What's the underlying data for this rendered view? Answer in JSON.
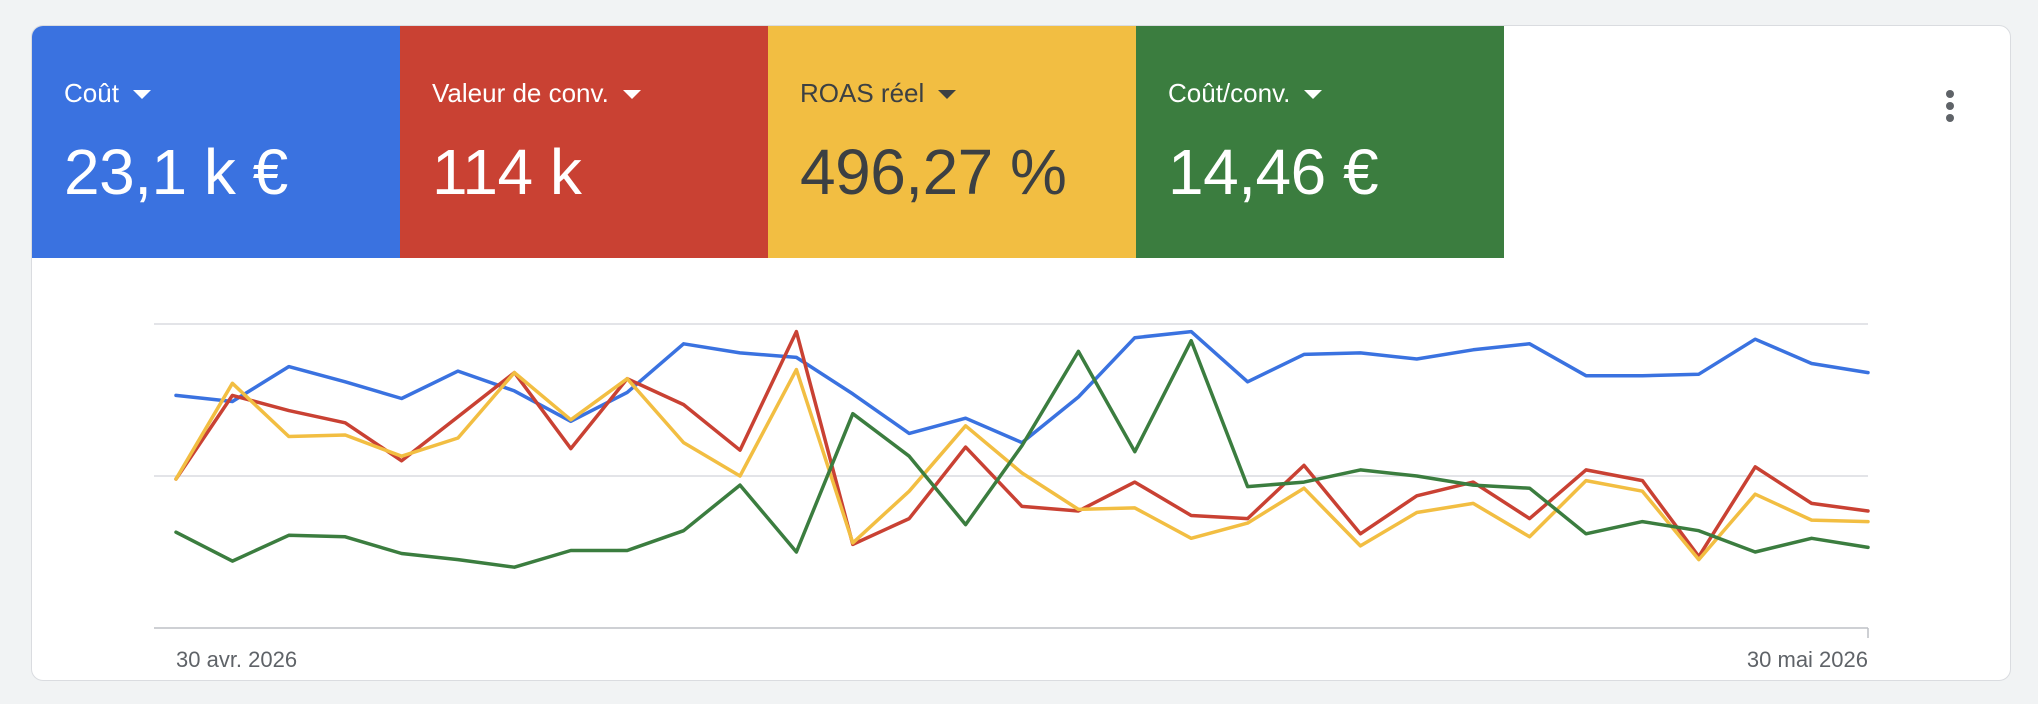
{
  "metrics": [
    {
      "label": "Coût",
      "value": "23,1 k €",
      "color": "#3a72e0",
      "text_color": "#ffffff",
      "icon": "caret-down-icon"
    },
    {
      "label": "Valeur de conv.",
      "value": "114 k",
      "color": "#c94133",
      "text_color": "#ffffff",
      "icon": "caret-down-icon"
    },
    {
      "label": "ROAS réel",
      "value": "496,27 %",
      "color": "#f2be42",
      "text_color": "#3c4043",
      "icon": "caret-down-icon"
    },
    {
      "label": "Coût/conv.",
      "value": "14,46 €",
      "color": "#3b7d3f",
      "text_color": "#ffffff",
      "icon": "caret-down-icon"
    }
  ],
  "menu": {
    "icon": "more-vert-icon"
  },
  "chart_data": {
    "type": "line",
    "x_labels": [
      "30 avr. 2026",
      "30 mai 2026"
    ],
    "x": [
      "2026-04-30",
      "2026-05-01",
      "2026-05-02",
      "2026-05-03",
      "2026-05-04",
      "2026-05-05",
      "2026-05-06",
      "2026-05-07",
      "2026-05-08",
      "2026-05-09",
      "2026-05-10",
      "2026-05-11",
      "2026-05-12",
      "2026-05-13",
      "2026-05-14",
      "2026-05-15",
      "2026-05-16",
      "2026-05-17",
      "2026-05-18",
      "2026-05-19",
      "2026-05-20",
      "2026-05-21",
      "2026-05-22",
      "2026-05-23",
      "2026-05-24",
      "2026-05-25",
      "2026-05-26",
      "2026-05-27",
      "2026-05-28",
      "2026-05-29",
      "2026-05-30"
    ],
    "ylim": [
      0,
      2
    ],
    "grid": true,
    "y_axis_labels": false,
    "series": [
      {
        "color": "#3a72e0",
        "values": [
          1.53,
          1.49,
          1.72,
          1.62,
          1.51,
          1.69,
          1.56,
          1.36,
          1.55,
          1.87,
          1.81,
          1.78,
          1.54,
          1.28,
          1.38,
          1.22,
          1.52,
          1.91,
          1.95,
          1.62,
          1.8,
          1.81,
          1.77,
          1.83,
          1.87,
          1.66,
          1.66,
          1.67,
          1.9,
          1.74,
          1.68
        ]
      },
      {
        "color": "#c94133",
        "values": [
          0.98,
          1.53,
          1.43,
          1.35,
          1.1,
          1.39,
          1.68,
          1.18,
          1.64,
          1.47,
          1.17,
          1.95,
          0.55,
          0.72,
          1.19,
          0.8,
          0.77,
          0.96,
          0.74,
          0.72,
          1.07,
          0.62,
          0.87,
          0.96,
          0.72,
          1.04,
          0.97,
          0.47,
          1.06,
          0.82,
          0.77
        ]
      },
      {
        "color": "#f2be42",
        "values": [
          0.98,
          1.61,
          1.26,
          1.27,
          1.13,
          1.25,
          1.68,
          1.37,
          1.64,
          1.22,
          1.0,
          1.7,
          0.56,
          0.9,
          1.33,
          1.02,
          0.78,
          0.79,
          0.59,
          0.69,
          0.92,
          0.54,
          0.76,
          0.82,
          0.6,
          0.97,
          0.9,
          0.45,
          0.88,
          0.71,
          0.7
        ]
      },
      {
        "color": "#3b7d3f",
        "values": [
          0.63,
          0.44,
          0.61,
          0.6,
          0.49,
          0.45,
          0.4,
          0.51,
          0.51,
          0.64,
          0.94,
          0.5,
          1.41,
          1.13,
          0.68,
          1.2,
          1.82,
          1.16,
          1.89,
          0.93,
          0.96,
          1.04,
          1.0,
          0.94,
          0.92,
          0.62,
          0.7,
          0.64,
          0.5,
          0.59,
          0.53
        ]
      }
    ]
  }
}
